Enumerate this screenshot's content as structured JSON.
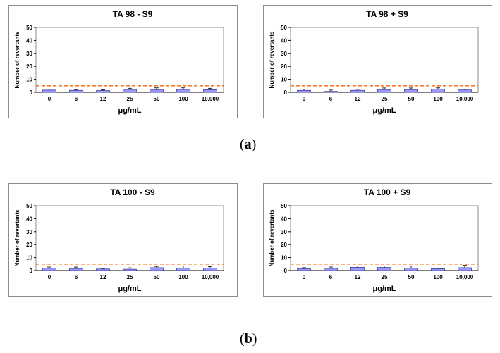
{
  "labels": {
    "a": "a",
    "b": "b"
  },
  "chart_data": [
    {
      "type": "bar",
      "title": "TA 98 - S9",
      "xlabel": "μg/mL",
      "ylabel": "Number of revertants",
      "categories": [
        "0",
        "6",
        "12",
        "25",
        "50",
        "100",
        "10,000"
      ],
      "values": [
        1.7,
        1.5,
        1.3,
        2.2,
        1.8,
        2.2,
        2.0
      ],
      "errors": [
        0.8,
        0.6,
        0.6,
        0.9,
        1.6,
        1.2,
        1.1
      ],
      "ylim": [
        0,
        50
      ],
      "yticks": [
        0,
        10,
        20,
        30,
        40,
        50
      ],
      "threshold": 5,
      "colors": {
        "bar": "#9999ff",
        "bar_edge": "#3d3d99",
        "threshold": "#ff6600"
      }
    },
    {
      "type": "bar",
      "title": "TA 98 + S9",
      "xlabel": "μg/mL",
      "ylabel": "Number of revertants",
      "categories": [
        "0",
        "6",
        "12",
        "25",
        "50",
        "100",
        "10,000"
      ],
      "values": [
        1.5,
        0.7,
        1.5,
        2.1,
        2.1,
        2.4,
        1.8
      ],
      "errors": [
        1.0,
        1.0,
        0.8,
        1.2,
        1.2,
        1.0,
        0.6
      ],
      "ylim": [
        0,
        50
      ],
      "yticks": [
        0,
        10,
        20,
        30,
        40,
        50
      ],
      "threshold": 5,
      "colors": {
        "bar": "#9999ff",
        "bar_edge": "#3d3d99",
        "threshold": "#ff6600"
      }
    },
    {
      "type": "bar",
      "title": "TA 100 - S9",
      "xlabel": "μg/mL",
      "ylabel": "Number of revertants",
      "categories": [
        "0",
        "6",
        "12",
        "25",
        "50",
        "100",
        "10,000"
      ],
      "values": [
        1.8,
        1.6,
        1.2,
        1.0,
        2.2,
        2.0,
        1.9
      ],
      "errors": [
        0.9,
        1.1,
        0.5,
        1.1,
        1.0,
        1.6,
        1.2
      ],
      "ylim": [
        0,
        50
      ],
      "yticks": [
        0,
        10,
        20,
        30,
        40,
        50
      ],
      "threshold": 5,
      "colors": {
        "bar": "#9999ff",
        "bar_edge": "#3d3d99",
        "threshold": "#ff6600"
      }
    },
    {
      "type": "bar",
      "title": "TA 100 + S9",
      "xlabel": "μg/mL",
      "ylabel": "Number of revertants",
      "categories": [
        "0",
        "6",
        "12",
        "25",
        "50",
        "100",
        "10,000"
      ],
      "values": [
        1.3,
        1.7,
        2.5,
        2.4,
        1.8,
        1.4,
        2.2
      ],
      "errors": [
        0.9,
        1.0,
        1.0,
        1.1,
        1.6,
        0.4,
        1.8
      ],
      "ylim": [
        0,
        50
      ],
      "yticks": [
        0,
        10,
        20,
        30,
        40,
        50
      ],
      "threshold": 5,
      "colors": {
        "bar": "#9999ff",
        "bar_edge": "#3d3d99",
        "threshold": "#ff6600"
      }
    }
  ]
}
